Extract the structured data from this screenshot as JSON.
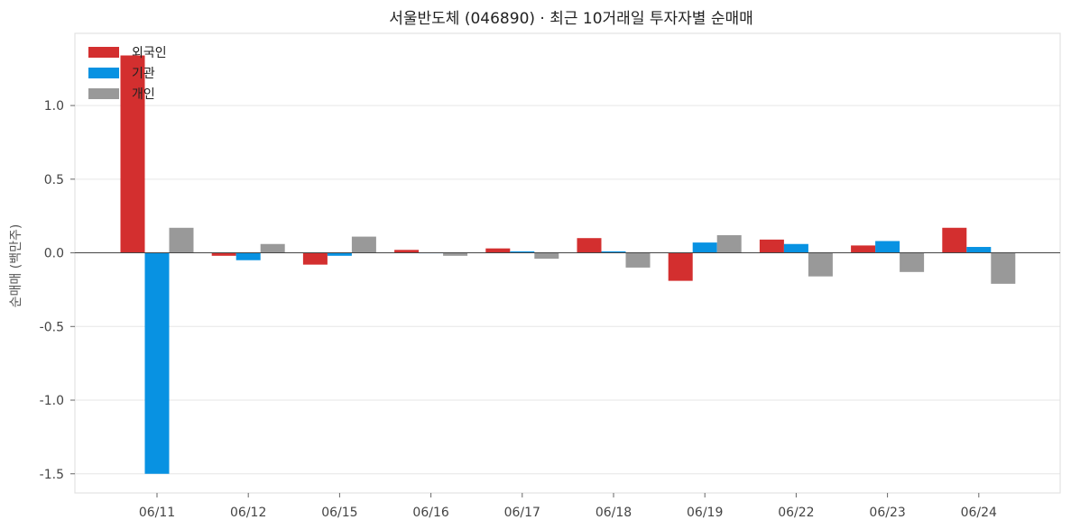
{
  "chart_data": {
    "type": "bar",
    "title": "서울반도체 (046890) · 최근 10거래일 투자자별 순매매",
    "xlabel": "",
    "ylabel": "순매매 (백만주)",
    "categories": [
      "06/11",
      "06/12",
      "06/15",
      "06/16",
      "06/17",
      "06/18",
      "06/19",
      "06/22",
      "06/23",
      "06/24"
    ],
    "series": [
      {
        "name": "외국인",
        "color": "#d32f2f",
        "values": [
          1.34,
          -0.02,
          -0.08,
          0.02,
          0.03,
          0.1,
          -0.19,
          0.09,
          0.05,
          0.17
        ]
      },
      {
        "name": "기관",
        "color": "#0892e2",
        "values": [
          -1.5,
          -0.05,
          -0.02,
          0.0,
          0.01,
          0.01,
          0.07,
          0.06,
          0.08,
          0.04
        ]
      },
      {
        "name": "개인",
        "color": "#999999",
        "values": [
          0.17,
          0.06,
          0.11,
          -0.02,
          -0.04,
          -0.1,
          0.12,
          -0.16,
          -0.13,
          -0.21
        ]
      }
    ],
    "ylim": [
      -1.63,
      1.49
    ],
    "yticks": [
      1.0,
      0.5,
      0.0,
      -0.5,
      -1.0,
      -1.5
    ],
    "ytick_labels": [
      "1.0",
      "0.5",
      "0.0",
      "-0.5",
      "-1.0",
      "-1.5"
    ],
    "grid": "horizontal",
    "legend": "top-left"
  }
}
